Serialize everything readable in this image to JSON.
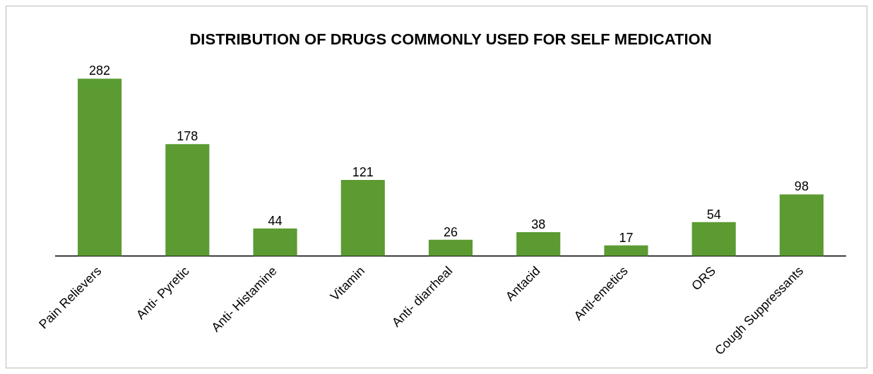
{
  "chart_data": {
    "type": "bar",
    "title": "DISTRIBUTION OF DRUGS COMMONLY USED FOR SELF MEDICATION",
    "categories": [
      "Pain Relievers",
      "Anti- Pyretic",
      "Anti- Histamine",
      "Vitamin",
      "Anti- diarrheal",
      "Antacid",
      "Anti-emetics",
      "ORS",
      "Cough Suppressants"
    ],
    "values": [
      282,
      178,
      44,
      121,
      26,
      38,
      17,
      54,
      98
    ],
    "color": "#5b9b32",
    "data_labels": true,
    "grid": false,
    "legend": false
  }
}
